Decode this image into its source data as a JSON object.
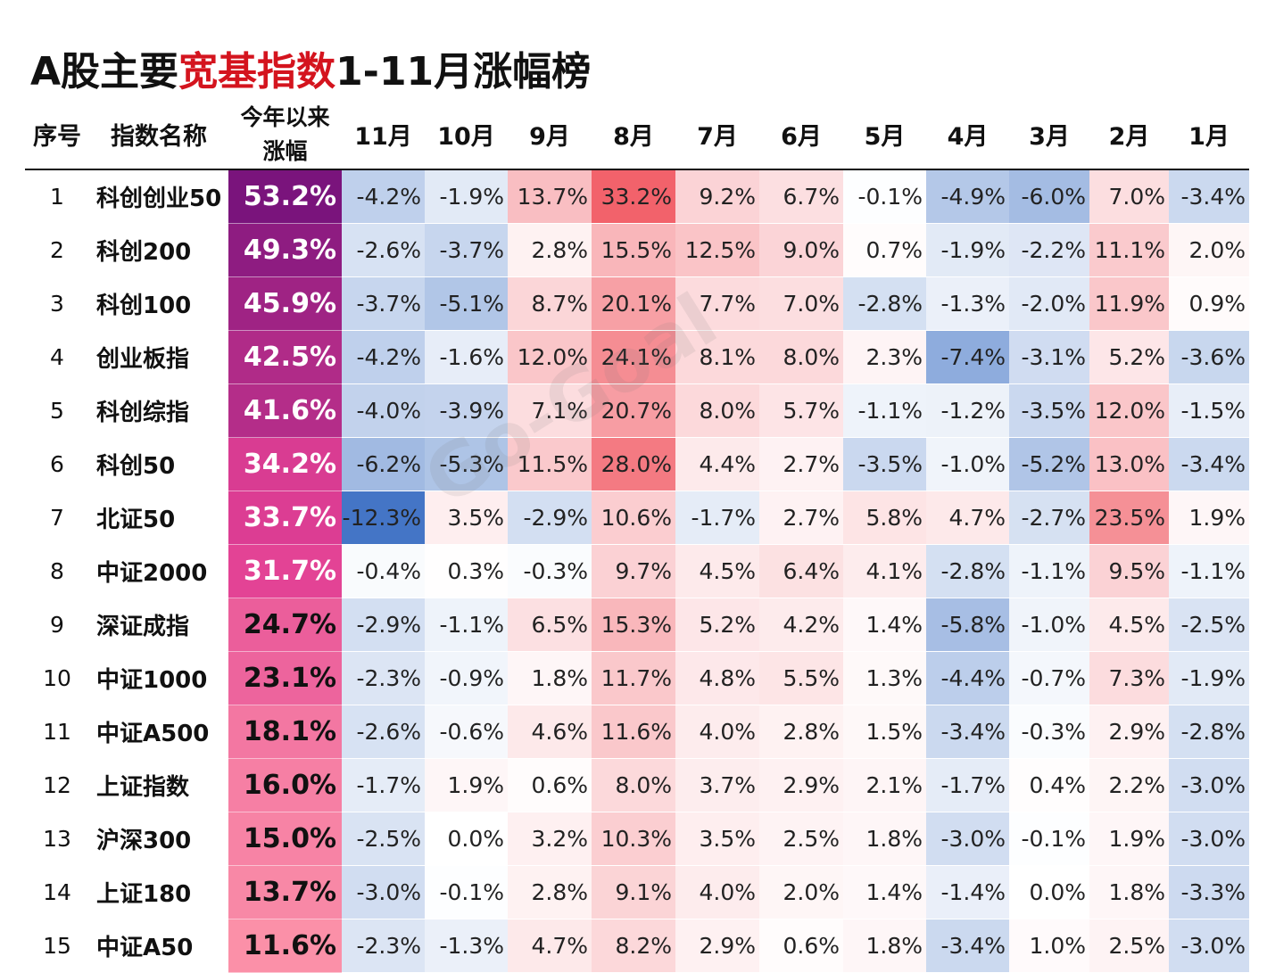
{
  "title": {
    "part1": "A股主要",
    "part2": "宽基指数",
    "part3": "1-11月涨幅榜"
  },
  "watermark": "Go-Goal",
  "colors": {
    "title_highlight": "#d4141e",
    "positive": "#f0505a",
    "negative": "#3a6ec3",
    "ytd_high": "#7a147c",
    "ytd_low": "#fb90a8"
  },
  "chart_data": {
    "type": "table",
    "title": "A股主要宽基指数1-11月涨幅榜",
    "columns": [
      "序号",
      "指数名称",
      "今年以来 涨幅",
      "11月",
      "10月",
      "9月",
      "8月",
      "7月",
      "6月",
      "5月",
      "4月",
      "3月",
      "2月",
      "1月"
    ],
    "header": {
      "rank": "序号",
      "name": "指数名称",
      "ytd_line1": "今年以来",
      "ytd_line2": "涨幅",
      "months": [
        "11月",
        "10月",
        "9月",
        "8月",
        "7月",
        "6月",
        "5月",
        "4月",
        "3月",
        "2月",
        "1月"
      ]
    },
    "unit": "%",
    "rows": [
      {
        "rank": "1",
        "name": "科创创业50",
        "ytd": 53.2,
        "months": [
          -4.2,
          -1.9,
          13.7,
          33.2,
          9.2,
          6.7,
          -0.1,
          -4.9,
          -6.0,
          7.0,
          -3.4
        ]
      },
      {
        "rank": "2",
        "name": "科创200",
        "ytd": 49.3,
        "months": [
          -2.6,
          -3.7,
          2.8,
          15.5,
          12.5,
          9.0,
          0.7,
          -1.9,
          -2.2,
          11.1,
          2.0
        ]
      },
      {
        "rank": "3",
        "name": "科创100",
        "ytd": 45.9,
        "months": [
          -3.7,
          -5.1,
          8.7,
          20.1,
          7.7,
          7.0,
          -2.8,
          -1.3,
          -2.0,
          11.9,
          0.9
        ]
      },
      {
        "rank": "4",
        "name": "创业板指",
        "ytd": 42.5,
        "months": [
          -4.2,
          -1.6,
          12.0,
          24.1,
          8.1,
          8.0,
          2.3,
          -7.4,
          -3.1,
          5.2,
          -3.6
        ]
      },
      {
        "rank": "5",
        "name": "科创综指",
        "ytd": 41.6,
        "months": [
          -4.0,
          -3.9,
          7.1,
          20.7,
          8.0,
          5.7,
          -1.1,
          -1.2,
          -3.5,
          12.0,
          -1.5
        ]
      },
      {
        "rank": "6",
        "name": "科创50",
        "ytd": 34.2,
        "months": [
          -6.2,
          -5.3,
          11.5,
          28.0,
          4.4,
          2.7,
          -3.5,
          -1.0,
          -5.2,
          13.0,
          -3.4
        ]
      },
      {
        "rank": "7",
        "name": "北证50",
        "ytd": 33.7,
        "months": [
          -12.3,
          3.5,
          -2.9,
          10.6,
          -1.7,
          2.7,
          5.8,
          4.7,
          -2.7,
          23.5,
          1.9
        ]
      },
      {
        "rank": "8",
        "name": "中证2000",
        "ytd": 31.7,
        "months": [
          -0.4,
          0.3,
          -0.3,
          9.7,
          4.5,
          6.4,
          4.1,
          -2.8,
          -1.1,
          9.5,
          -1.1
        ]
      },
      {
        "rank": "9",
        "name": "深证成指",
        "ytd": 24.7,
        "months": [
          -2.9,
          -1.1,
          6.5,
          15.3,
          5.2,
          4.2,
          1.4,
          -5.8,
          -1.0,
          4.5,
          -2.5
        ]
      },
      {
        "rank": "10",
        "name": "中证1000",
        "ytd": 23.1,
        "months": [
          -2.3,
          -0.9,
          1.8,
          11.7,
          4.8,
          5.5,
          1.3,
          -4.4,
          -0.7,
          7.3,
          -1.9
        ]
      },
      {
        "rank": "11",
        "name": "中证A500",
        "ytd": 18.1,
        "months": [
          -2.6,
          -0.6,
          4.6,
          11.6,
          4.0,
          2.8,
          1.5,
          -3.4,
          -0.3,
          2.9,
          -2.8
        ]
      },
      {
        "rank": "12",
        "name": "上证指数",
        "ytd": 16.0,
        "months": [
          -1.7,
          1.9,
          0.6,
          8.0,
          3.7,
          2.9,
          2.1,
          -1.7,
          0.4,
          2.2,
          -3.0
        ]
      },
      {
        "rank": "13",
        "name": "沪深300",
        "ytd": 15.0,
        "months": [
          -2.5,
          0.0,
          3.2,
          10.3,
          3.5,
          2.5,
          1.8,
          -3.0,
          -0.1,
          1.9,
          -3.0
        ]
      },
      {
        "rank": "14",
        "name": "上证180",
        "ytd": 13.7,
        "months": [
          -3.0,
          -0.1,
          2.8,
          9.1,
          4.0,
          2.0,
          1.4,
          -1.4,
          0.0,
          1.8,
          -3.3
        ]
      },
      {
        "rank": "15",
        "name": "中证A50",
        "ytd": 11.6,
        "months": [
          -2.3,
          -1.3,
          4.7,
          8.2,
          2.9,
          0.6,
          1.8,
          -3.4,
          1.0,
          2.5,
          -3.0
        ]
      }
    ]
  }
}
